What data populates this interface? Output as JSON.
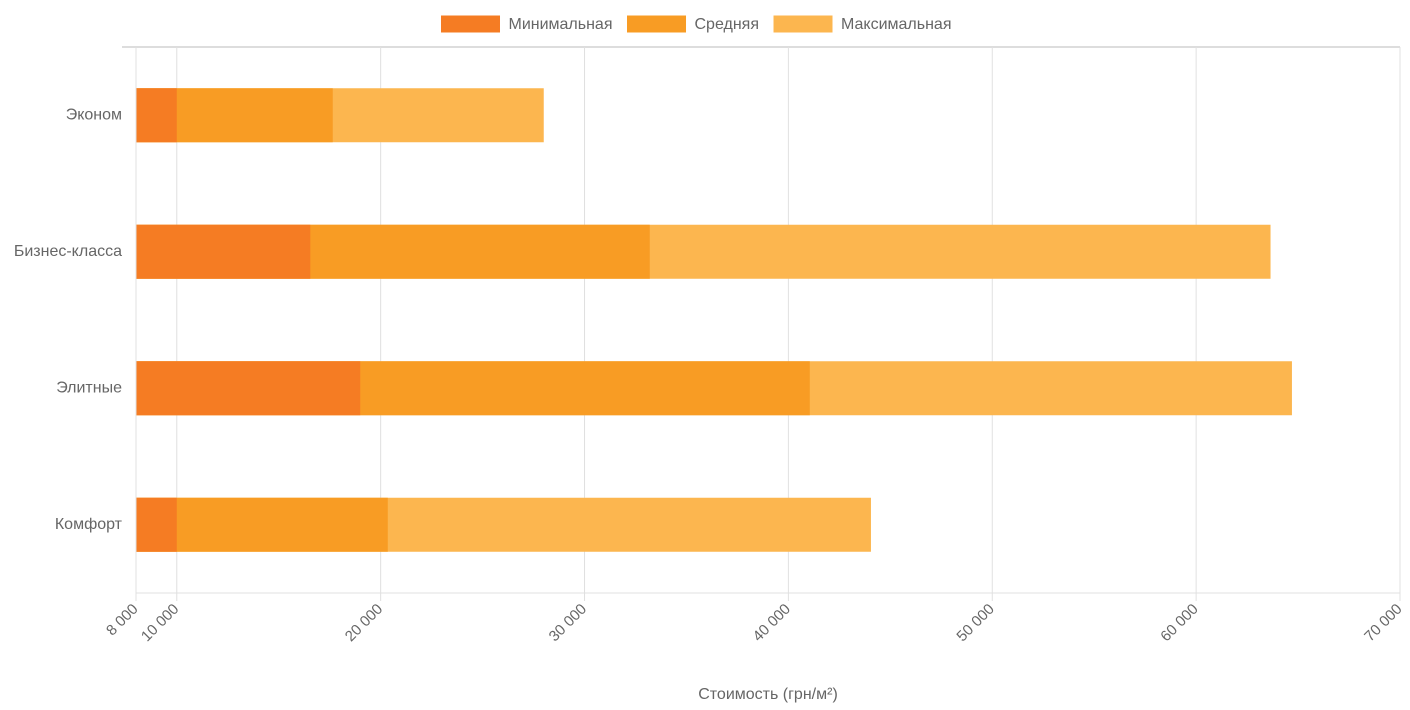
{
  "chart_data": {
    "type": "bar",
    "orientation": "horizontal",
    "x_label": "Стоимость (грн/м²)",
    "categories": [
      "Эконом",
      "Бизнес-класса",
      "Элитные",
      "Комфорт"
    ],
    "series": [
      {
        "name": "Минимальная",
        "color": "#f57c23",
        "values": [
          10000,
          16550,
          19000,
          10000
        ]
      },
      {
        "name": "Средняя",
        "color": "#f89c24",
        "values": [
          17650,
          33200,
          41050,
          20350
        ]
      },
      {
        "name": "Максимальная",
        "color": "#fcb64f",
        "values": [
          28000,
          63650,
          64700,
          44050
        ]
      }
    ],
    "xlim": [
      8000,
      70000
    ],
    "xticks": [
      {
        "value": 8000,
        "label": "8 000"
      },
      {
        "value": 10000,
        "label": "10 000"
      },
      {
        "value": 20000,
        "label": "20 000"
      },
      {
        "value": 30000,
        "label": "30 000"
      },
      {
        "value": 40000,
        "label": "40 000"
      },
      {
        "value": 50000,
        "label": "50 000"
      },
      {
        "value": 60000,
        "label": "60 000"
      },
      {
        "value": 70000,
        "label": "70 000"
      }
    ],
    "grid": true,
    "legend": "top"
  }
}
